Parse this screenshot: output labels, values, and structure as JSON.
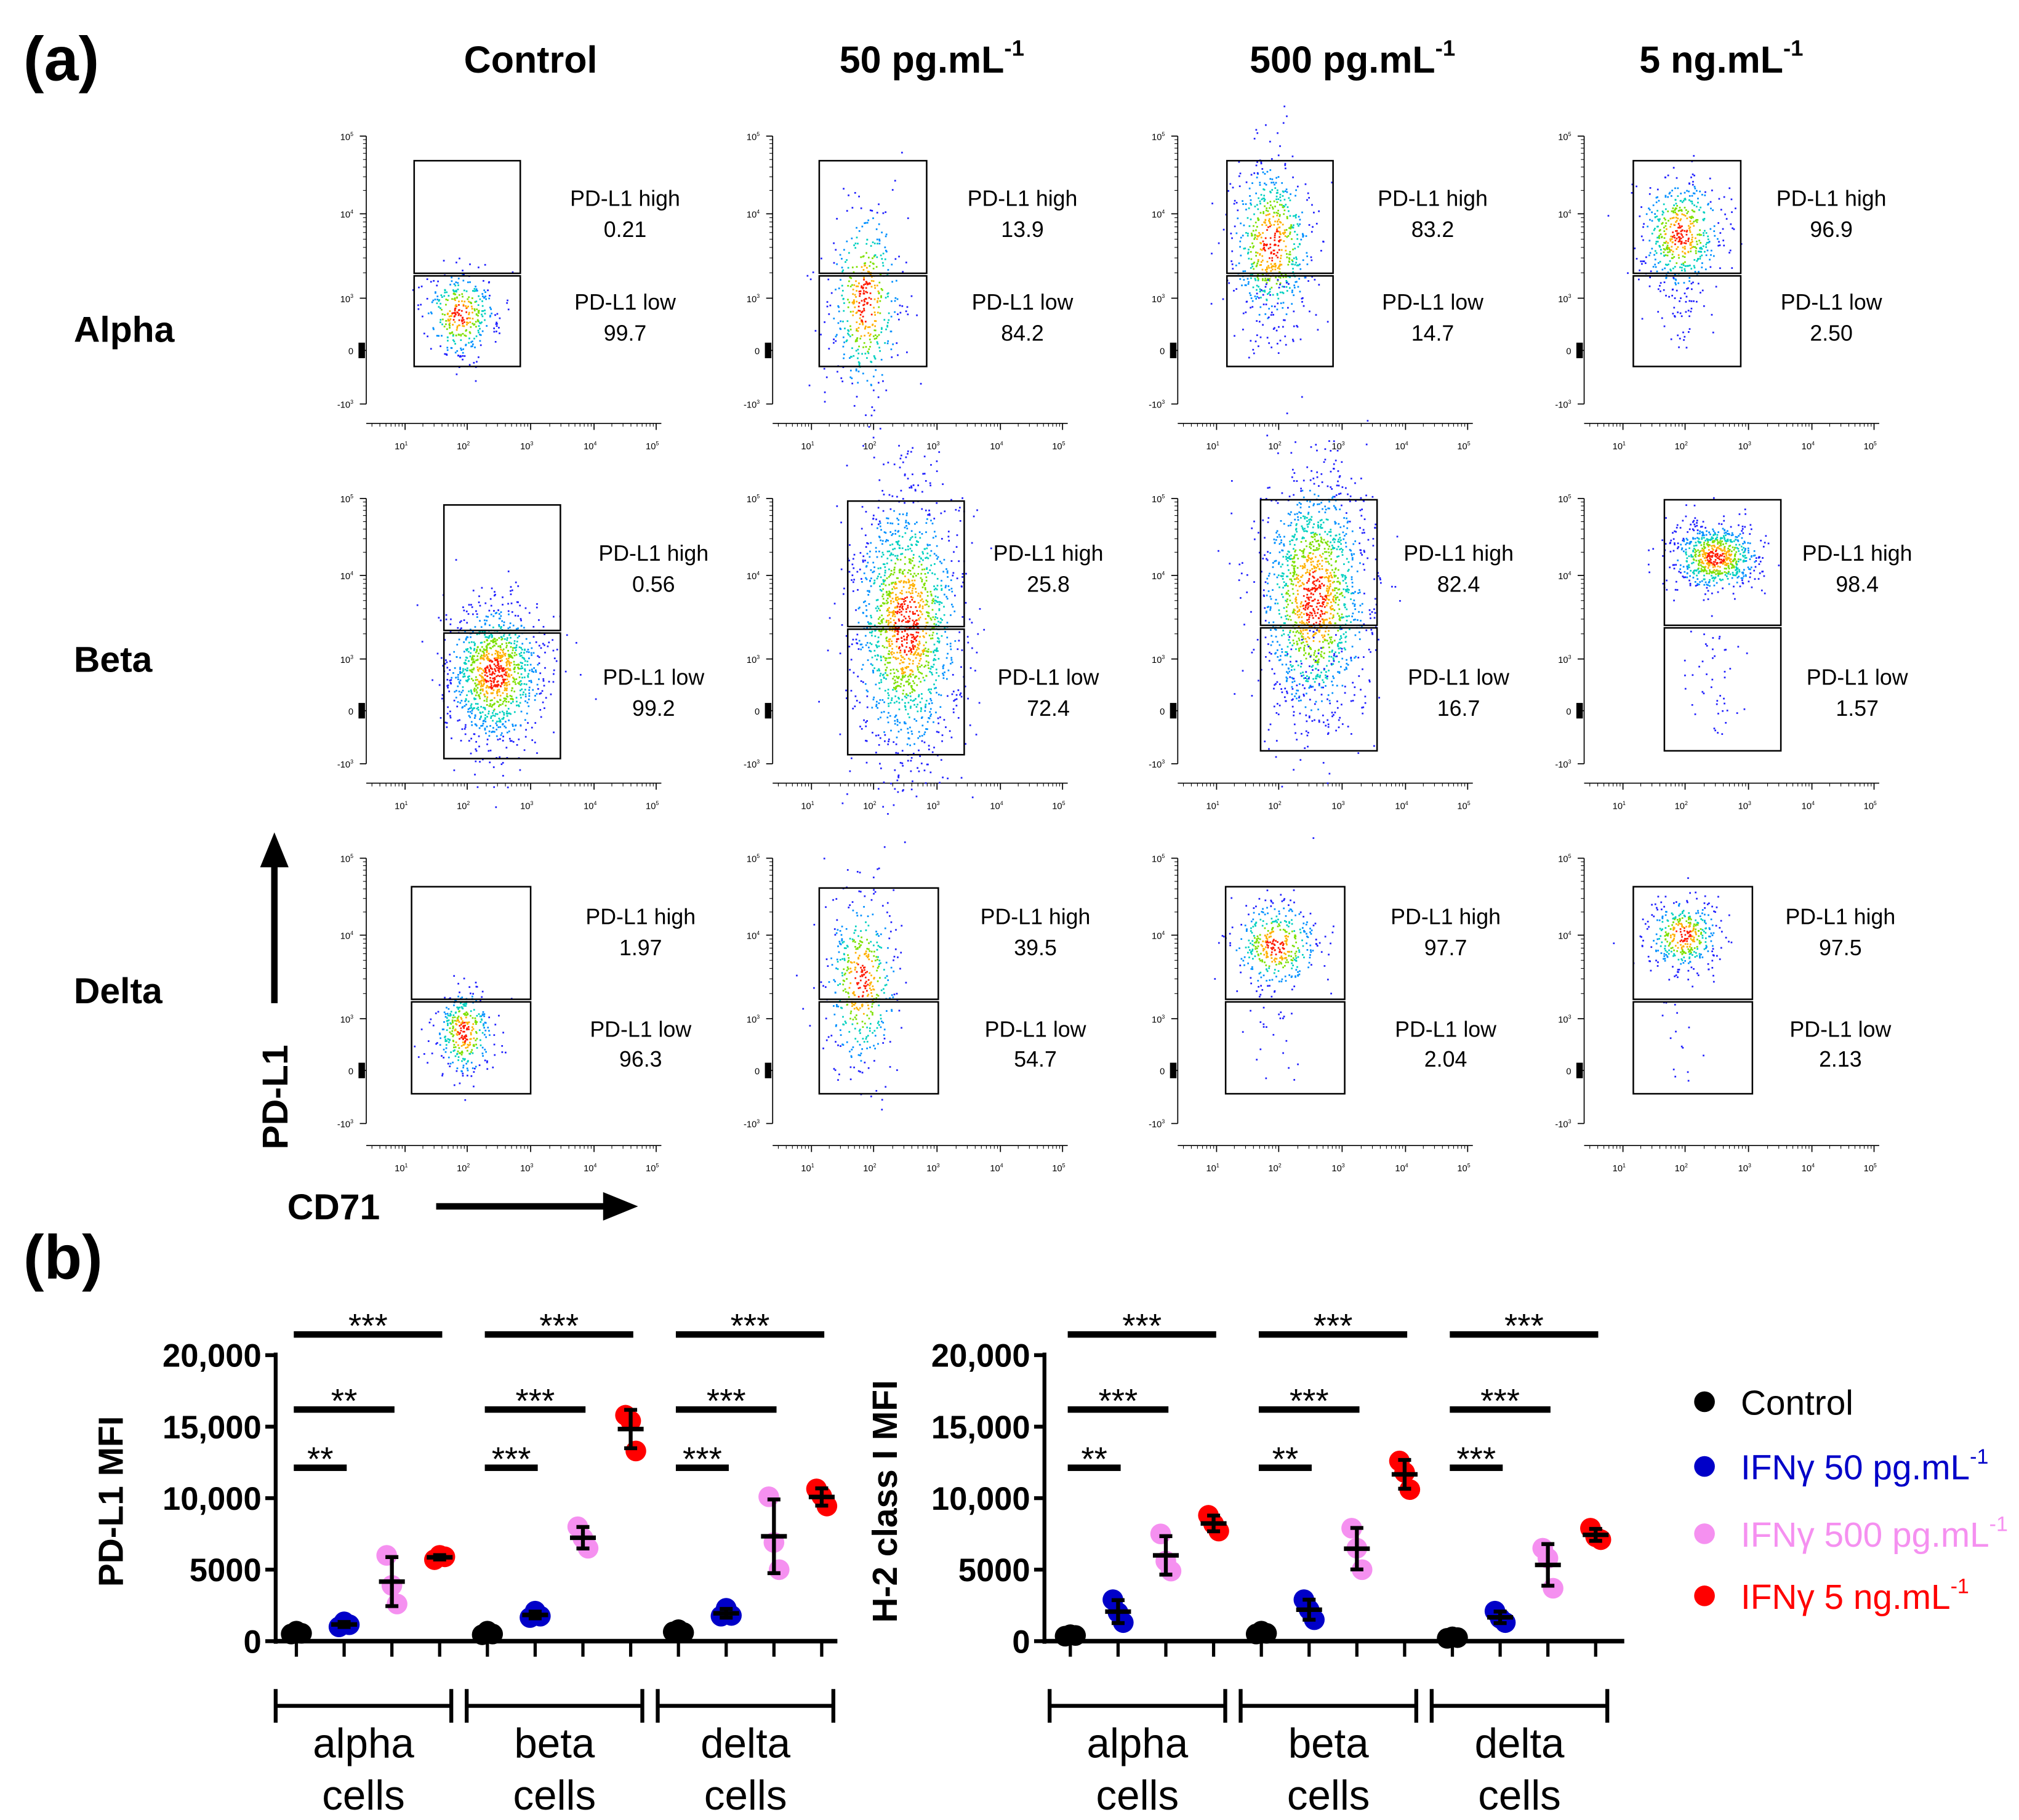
{
  "panel_a": {
    "label": "(a)",
    "columns": [
      {
        "text": "Control",
        "sup": ""
      },
      {
        "text": "50 pg.mL",
        "sup": "-1"
      },
      {
        "text": "500 pg.mL",
        "sup": "-1"
      },
      {
        "text": "5 ng.mL",
        "sup": "-1"
      }
    ],
    "rows": [
      "Alpha",
      "Beta",
      "Delta"
    ],
    "y_axis_label": "PD-L1",
    "x_axis_label": "CD71",
    "y_ticks": [
      {
        "base": "10",
        "exp": "5"
      },
      {
        "base": "10",
        "exp": "4"
      },
      {
        "base": "10",
        "exp": "3"
      },
      {
        "base": "0",
        "exp": ""
      },
      {
        "base": "-10",
        "exp": "3"
      }
    ],
    "x_ticks": [
      {
        "base": "10",
        "exp": "1"
      },
      {
        "base": "10",
        "exp": "2"
      },
      {
        "base": "10",
        "exp": "3"
      },
      {
        "base": "10",
        "exp": "4"
      },
      {
        "base": "10",
        "exp": "5"
      }
    ],
    "gate_high_label": "PD-L1 high",
    "gate_low_label": "PD-L1 low",
    "plots": [
      [
        {
          "high": "0.21",
          "low": "99.7"
        },
        {
          "high": "13.9",
          "low": "84.2"
        },
        {
          "high": "83.2",
          "low": "14.7"
        },
        {
          "high": "96.9",
          "low": "2.50"
        }
      ],
      [
        {
          "high": "0.56",
          "low": "99.2"
        },
        {
          "high": "25.8",
          "low": "72.4"
        },
        {
          "high": "82.4",
          "low": "16.7"
        },
        {
          "high": "98.4",
          "low": "1.57"
        }
      ],
      [
        {
          "high": "1.97",
          "low": "96.3"
        },
        {
          "high": "39.5",
          "low": "54.7"
        },
        {
          "high": "97.7",
          "low": "2.04"
        },
        {
          "high": "97.5",
          "low": "2.13"
        }
      ]
    ]
  },
  "panel_b": {
    "label": "(b)"
  },
  "legend": [
    {
      "text": "Control",
      "sup": "",
      "color": "#000000"
    },
    {
      "text": "IFNγ 50 pg.mL",
      "sup": "-1",
      "color": "#0000c8"
    },
    {
      "text": "IFNγ 500 pg.mL",
      "sup": "-1",
      "color": "#f590f0"
    },
    {
      "text": "IFNγ 5 ng.mL",
      "sup": "-1",
      "color": "#ff0000"
    }
  ],
  "chart_data": [
    {
      "type": "scatter",
      "ylabel": "PD-L1 MFI",
      "ylim": [
        0,
        20000
      ],
      "yticks": [
        0,
        5000,
        10000,
        15000,
        20000
      ],
      "ytick_labels": [
        "0",
        "5000",
        "10,000",
        "15,000",
        "20,000"
      ],
      "categories": [
        [
          "alpha",
          "cells"
        ],
        [
          "beta",
          "cells"
        ],
        [
          "delta",
          "cells"
        ]
      ],
      "series": [
        {
          "name": "Control",
          "values": [
            [
              500,
              700,
              550
            ],
            [
              450,
              700,
              500
            ],
            [
              650,
              800,
              600
            ]
          ]
        },
        {
          "name": "IFNγ 50 pg.mL-1",
          "values": [
            [
              1000,
              1350,
              1150
            ],
            [
              1650,
              2100,
              1750
            ],
            [
              1750,
              2300,
              1800
            ]
          ]
        },
        {
          "name": "IFNγ 500 pg.mL-1",
          "values": [
            [
              6000,
              3900,
              2600
            ],
            [
              8000,
              7200,
              6500
            ],
            [
              10100,
              6900,
              5000
            ]
          ]
        },
        {
          "name": "IFNγ 5 ng.mL-1",
          "values": [
            [
              5700,
              6000,
              5900
            ],
            [
              15800,
              15400,
              13300
            ],
            [
              10650,
              10150,
              9450
            ]
          ]
        }
      ],
      "significance": [
        {
          "group": 0,
          "vs": 1,
          "label": "**"
        },
        {
          "group": 0,
          "vs": 2,
          "label": "**"
        },
        {
          "group": 0,
          "vs": 3,
          "label": "***"
        },
        {
          "group": 1,
          "vs": 1,
          "label": "***"
        },
        {
          "group": 1,
          "vs": 2,
          "label": "***"
        },
        {
          "group": 1,
          "vs": 3,
          "label": "***"
        },
        {
          "group": 2,
          "vs": 1,
          "label": "***"
        },
        {
          "group": 2,
          "vs": 2,
          "label": "***"
        },
        {
          "group": 2,
          "vs": 3,
          "label": "***"
        }
      ]
    },
    {
      "type": "scatter",
      "ylabel": "H-2 class I MFI",
      "ylim": [
        0,
        20000
      ],
      "yticks": [
        0,
        5000,
        10000,
        15000,
        20000
      ],
      "ytick_labels": [
        "0",
        "5000",
        "10,000",
        "15,000",
        "20,000"
      ],
      "categories": [
        [
          "alpha",
          "cells"
        ],
        [
          "beta",
          "cells"
        ],
        [
          "delta",
          "cells"
        ]
      ],
      "series": [
        {
          "name": "Control",
          "values": [
            [
              350,
              450,
              400
            ],
            [
              500,
              700,
              550
            ],
            [
              200,
              300,
              250
            ]
          ]
        },
        {
          "name": "IFNγ 50 pg.mL-1",
          "values": [
            [
              2900,
              2000,
              1300
            ],
            [
              2900,
              2200,
              1500
            ],
            [
              2100,
              1600,
              1300
            ]
          ]
        },
        {
          "name": "IFNγ 500 pg.mL-1",
          "values": [
            [
              7500,
              5600,
              4900
            ],
            [
              7900,
              6500,
              5000
            ],
            [
              6500,
              5800,
              3700
            ]
          ]
        },
        {
          "name": "IFNγ 5 ng.mL-1",
          "values": [
            [
              8800,
              8200,
              7700
            ],
            [
              12600,
              11800,
              10600
            ],
            [
              7900,
              7300,
              7100
            ]
          ]
        }
      ],
      "significance": [
        {
          "group": 0,
          "vs": 1,
          "label": "**"
        },
        {
          "group": 0,
          "vs": 2,
          "label": "***"
        },
        {
          "group": 0,
          "vs": 3,
          "label": "***"
        },
        {
          "group": 1,
          "vs": 1,
          "label": "**"
        },
        {
          "group": 1,
          "vs": 2,
          "label": "***"
        },
        {
          "group": 1,
          "vs": 3,
          "label": "***"
        },
        {
          "group": 2,
          "vs": 1,
          "label": "***"
        },
        {
          "group": 2,
          "vs": 2,
          "label": "***"
        },
        {
          "group": 2,
          "vs": 3,
          "label": "***"
        }
      ]
    }
  ]
}
